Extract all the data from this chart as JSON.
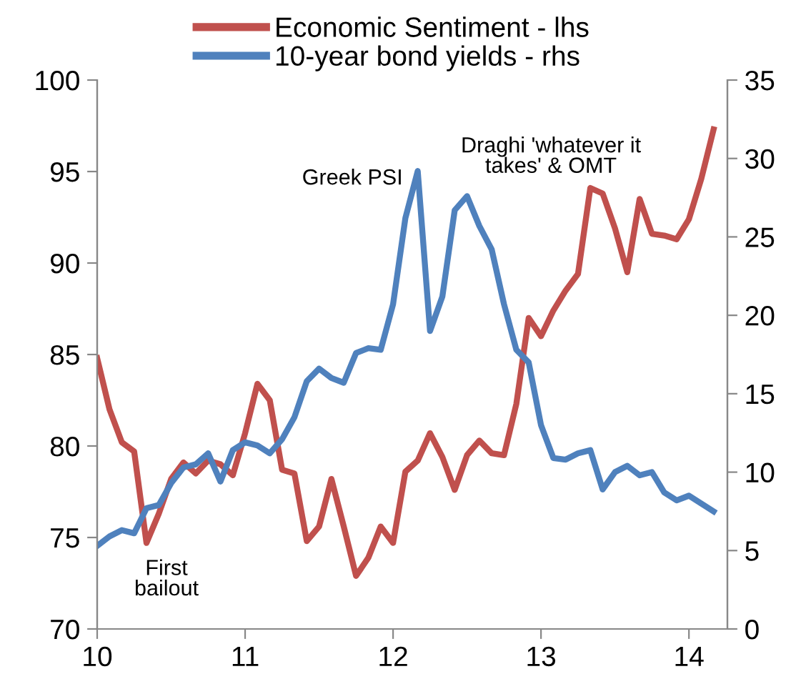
{
  "chart_data": {
    "type": "line",
    "x": [
      10,
      10.0833,
      10.1667,
      10.25,
      10.3333,
      10.4167,
      10.5,
      10.5833,
      10.6667,
      10.75,
      10.8333,
      10.9167,
      11,
      11.0833,
      11.1667,
      11.25,
      11.3333,
      11.4167,
      11.5,
      11.5833,
      11.6667,
      11.75,
      11.8333,
      11.9167,
      12,
      12.0833,
      12.1667,
      12.25,
      12.3333,
      12.4167,
      12.5,
      12.5833,
      12.6667,
      12.75,
      12.8333,
      12.9167,
      13,
      13.0833,
      13.1667,
      13.25,
      13.3333,
      13.4167,
      13.5,
      13.5833,
      13.6667,
      13.75,
      13.8333,
      13.9167,
      14,
      14.0833,
      14.1667
    ],
    "series": [
      {
        "name": "Economic Sentiment - lhs",
        "color": "#c0504d",
        "values": [
          84.8,
          82.0,
          80.2,
          79.7,
          74.7,
          76.3,
          78.2,
          79.1,
          78.5,
          79.2,
          79.0,
          78.4,
          80.7,
          83.4,
          82.5,
          78.7,
          78.5,
          74.8,
          75.6,
          78.2,
          75.6,
          72.9,
          73.9,
          75.6,
          74.7,
          78.6,
          79.2,
          80.7,
          79.4,
          77.6,
          79.5,
          80.3,
          79.6,
          79.5,
          82.3,
          87.0,
          86.0,
          87.4,
          88.5,
          89.4,
          94.1,
          93.8,
          91.9,
          89.5,
          93.5,
          91.6,
          91.5,
          91.3,
          92.4,
          94.6,
          97.3
        ]
      },
      {
        "name": "10-year bond yields - rhs",
        "color": "#4f81bd",
        "axis": "y2",
        "values": [
          5.3,
          5.9,
          6.3,
          6.1,
          7.7,
          7.9,
          9.3,
          10.3,
          10.5,
          11.2,
          9.4,
          11.4,
          11.9,
          11.7,
          11.2,
          12.1,
          13.5,
          15.8,
          16.6,
          16.0,
          15.7,
          17.6,
          17.9,
          17.8,
          20.7,
          26.2,
          29.2,
          19.0,
          21.2,
          26.7,
          27.6,
          25.7,
          24.2,
          20.7,
          17.8,
          17.0,
          13.0,
          10.9,
          10.8,
          11.2,
          11.4,
          8.9,
          10.0,
          10.4,
          9.8,
          10.0,
          8.7,
          8.2,
          8.5,
          8.0,
          7.5
        ]
      }
    ],
    "xlim": [
      10,
      14.26
    ],
    "xticks": [
      10,
      11,
      12,
      13,
      14
    ],
    "ylim": [
      70,
      100
    ],
    "yticks": [
      70,
      75,
      80,
      85,
      90,
      95,
      100
    ],
    "y2lim": [
      0,
      35
    ],
    "y2ticks": [
      0,
      5,
      10,
      15,
      20,
      25,
      30,
      35
    ],
    "annotations": [
      "First\nbailout",
      "Greek PSI",
      "Draghi 'whatever it\ntakes' & OMT"
    ],
    "legend": "top",
    "grid": false,
    "marker": "none",
    "line_style": "solid"
  }
}
